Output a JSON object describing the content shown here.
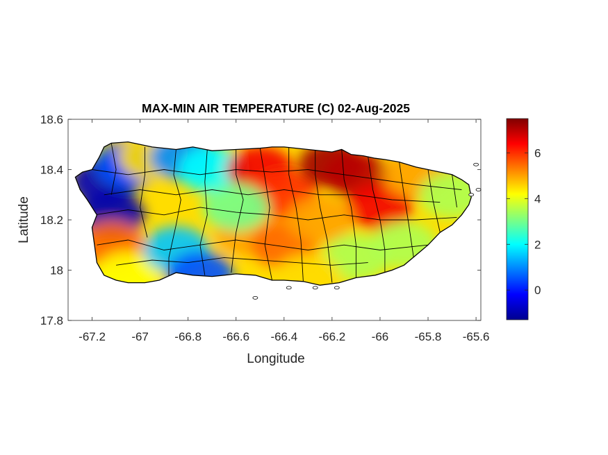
{
  "title": "MAX-MIN AIR TEMPERATURE (C) 02-Aug-2025",
  "map": {
    "xlabel": "Longitude",
    "ylabel": "Latitude",
    "xlim": [
      -67.3,
      -65.58
    ],
    "ylim": [
      17.8,
      18.6
    ],
    "xticks": [
      -67.2,
      -67,
      -66.8,
      -66.6,
      -66.4,
      -66.2,
      -66,
      -65.8,
      -65.6
    ],
    "xtick_labels": [
      "-67.2",
      "-67",
      "-66.8",
      "-66.6",
      "-66.4",
      "-66.2",
      "-66",
      "-65.8",
      "-65.6"
    ],
    "yticks": [
      17.8,
      18,
      18.2,
      18.4,
      18.6
    ],
    "ytick_labels": [
      "17.8",
      "18",
      "18.2",
      "18.4",
      "18.6"
    ],
    "region": "Puerto Rico",
    "variable_units": "C"
  },
  "colorbar": {
    "colormap": "jet",
    "range": [
      -1.3,
      7.5
    ],
    "ticks": [
      0,
      2,
      4,
      6
    ],
    "tick_labels": [
      "0",
      "2",
      "4",
      "6"
    ]
  },
  "chart_data": {
    "type": "heatmap",
    "title": "MAX-MIN AIR TEMPERATURE (C) 02-Aug-2025",
    "xlabel": "Longitude",
    "ylabel": "Latitude",
    "xlim": [
      -67.3,
      -65.58
    ],
    "ylim": [
      17.8,
      18.6
    ],
    "value_range": [
      -1.3,
      7.5
    ],
    "colormap": "jet",
    "grid": false,
    "approximate_field": [
      {
        "lon": -67.15,
        "lat": 18.35,
        "value": -0.8
      },
      {
        "lon": -67.12,
        "lat": 18.22,
        "value": -0.9
      },
      {
        "lon": -67.05,
        "lat": 18.42,
        "value": 0.5
      },
      {
        "lon": -66.95,
        "lat": 18.45,
        "value": 4.5
      },
      {
        "lon": -66.82,
        "lat": 18.45,
        "value": 1.0
      },
      {
        "lon": -66.7,
        "lat": 18.4,
        "value": 2.0
      },
      {
        "lon": -66.5,
        "lat": 18.4,
        "value": 6.5
      },
      {
        "lon": -66.4,
        "lat": 18.3,
        "value": 6.0
      },
      {
        "lon": -66.2,
        "lat": 18.42,
        "value": 7.2
      },
      {
        "lon": -66.1,
        "lat": 18.38,
        "value": 7.0
      },
      {
        "lon": -66.0,
        "lat": 18.25,
        "value": 6.5
      },
      {
        "lon": -65.85,
        "lat": 18.38,
        "value": 5.0
      },
      {
        "lon": -65.7,
        "lat": 18.3,
        "value": 3.5
      },
      {
        "lon": -67.12,
        "lat": 18.1,
        "value": 5.5
      },
      {
        "lon": -67.05,
        "lat": 17.98,
        "value": 4.2
      },
      {
        "lon": -66.85,
        "lat": 18.08,
        "value": 1.5
      },
      {
        "lon": -66.75,
        "lat": 17.98,
        "value": 0.5
      },
      {
        "lon": -66.55,
        "lat": 18.15,
        "value": 5.0
      },
      {
        "lon": -66.4,
        "lat": 18.1,
        "value": 5.5
      },
      {
        "lon": -66.25,
        "lat": 18.2,
        "value": 5.0
      },
      {
        "lon": -66.1,
        "lat": 18.05,
        "value": 3.5
      },
      {
        "lon": -65.9,
        "lat": 18.1,
        "value": 3.5
      },
      {
        "lon": -66.3,
        "lat": 17.97,
        "value": 4.5
      },
      {
        "lon": -66.6,
        "lat": 18.25,
        "value": 3.0
      }
    ]
  }
}
